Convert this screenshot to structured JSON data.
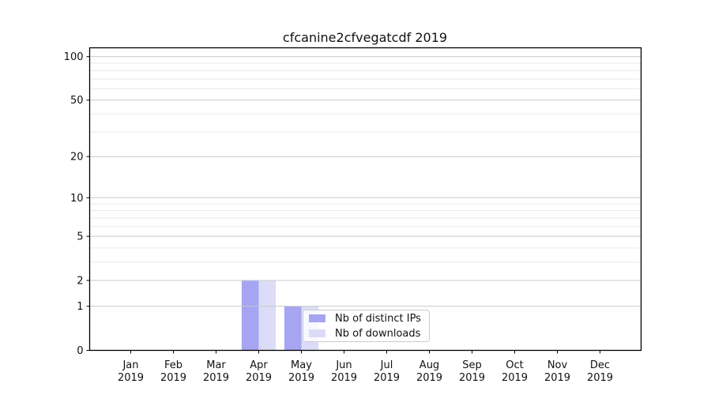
{
  "chart_data": {
    "type": "bar",
    "title": "cfcanine2cfvegatcdf 2019",
    "categories": [
      {
        "month": "Jan",
        "year": "2019"
      },
      {
        "month": "Feb",
        "year": "2019"
      },
      {
        "month": "Mar",
        "year": "2019"
      },
      {
        "month": "Apr",
        "year": "2019"
      },
      {
        "month": "May",
        "year": "2019"
      },
      {
        "month": "Jun",
        "year": "2019"
      },
      {
        "month": "Jul",
        "year": "2019"
      },
      {
        "month": "Aug",
        "year": "2019"
      },
      {
        "month": "Sep",
        "year": "2019"
      },
      {
        "month": "Oct",
        "year": "2019"
      },
      {
        "month": "Nov",
        "year": "2019"
      },
      {
        "month": "Dec",
        "year": "2019"
      }
    ],
    "series": [
      {
        "name": "Nb of distinct IPs",
        "color": "#a5a5f2",
        "values": [
          0,
          0,
          0,
          2,
          1,
          0,
          0,
          0,
          0,
          0,
          0,
          0
        ]
      },
      {
        "name": "Nb of downloads",
        "color": "#dcdcf8",
        "values": [
          0,
          0,
          0,
          2,
          1,
          0,
          0,
          0,
          0,
          0,
          0,
          0
        ]
      }
    ],
    "yscale": "log1p",
    "ylim": [
      0,
      115
    ],
    "yticks": [
      {
        "value": 0,
        "label": "0"
      },
      {
        "value": 1,
        "label": "1"
      },
      {
        "value": 2,
        "label": "2"
      },
      {
        "value": 5,
        "label": "5"
      },
      {
        "value": 10,
        "label": "10"
      },
      {
        "value": 20,
        "label": "20"
      },
      {
        "value": 50,
        "label": "50"
      },
      {
        "value": 100,
        "label": "100"
      }
    ],
    "yticks_minor": [
      3,
      4,
      6,
      7,
      8,
      9,
      30,
      40,
      60,
      70,
      80,
      90
    ],
    "grid": true,
    "legend": {
      "position": "lower center"
    }
  },
  "colors": {
    "grid_major": "#c9c9c9",
    "grid_minor": "#eaeaea",
    "axis": "#000000",
    "text": "#111111",
    "legend_border": "#cccccc",
    "background": "#ffffff"
  }
}
